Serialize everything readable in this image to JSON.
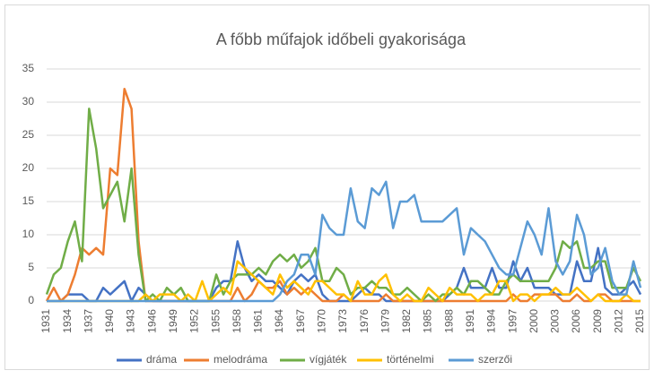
{
  "chart_data": {
    "type": "line",
    "title": "A főbb műfajok időbeli  gyakorisága",
    "categories": [
      "1931",
      null,
      null,
      "1934",
      null,
      null,
      "1937",
      null,
      null,
      "1940",
      null,
      null,
      "1943",
      null,
      null,
      "1946",
      null,
      null,
      "1949",
      null,
      null,
      "1952",
      null,
      null,
      "1955",
      null,
      null,
      "1958",
      null,
      null,
      "1961",
      null,
      null,
      "1964",
      null,
      null,
      "1967",
      null,
      null,
      "1970",
      null,
      null,
      "1973",
      null,
      null,
      "1976",
      null,
      null,
      "1979",
      null,
      null,
      "1982",
      null,
      null,
      "1985",
      null,
      null,
      "1988",
      null,
      null,
      "1991",
      null,
      null,
      "1994",
      null,
      null,
      "1997",
      null,
      null,
      "2000",
      null,
      null,
      "2003",
      null,
      null,
      "2006",
      null,
      null,
      "2009",
      null,
      null,
      "2012",
      null,
      null,
      "2015"
    ],
    "series": [
      {
        "name": "dráma",
        "color": "#4472c4",
        "values": [
          0,
          0,
          0,
          1,
          1,
          1,
          0,
          0,
          2,
          1,
          2,
          3,
          0,
          2,
          1,
          0,
          0,
          0,
          0,
          0,
          0,
          0,
          0,
          0,
          2,
          3,
          3,
          9,
          5,
          3,
          4,
          3,
          3,
          2,
          1,
          3,
          4,
          3,
          4,
          1,
          0,
          0,
          0,
          0,
          1,
          2,
          1,
          1,
          0,
          0,
          0,
          0,
          0,
          0,
          0,
          0,
          0,
          1,
          2,
          5,
          2,
          2,
          2,
          5,
          2,
          2,
          6,
          3,
          5,
          2,
          2,
          2,
          1,
          1,
          1,
          6,
          3,
          3,
          8,
          2,
          1,
          1,
          2,
          3,
          1
        ]
      },
      {
        "name": "melodráma",
        "color": "#ed7d31",
        "values": [
          0,
          2,
          0,
          1,
          4,
          8,
          7,
          8,
          7,
          20,
          19,
          32,
          29,
          9,
          0,
          0,
          0,
          0,
          0,
          0,
          0,
          0,
          0,
          0,
          0,
          0,
          0,
          2,
          0,
          1,
          3,
          2,
          2,
          3,
          1,
          2,
          1,
          2,
          1,
          0,
          0,
          0,
          1,
          0,
          0,
          0,
          0,
          0,
          1,
          0,
          0,
          0,
          0,
          0,
          0,
          0,
          0,
          0,
          0,
          0,
          0,
          0,
          0,
          0,
          0,
          0,
          1,
          0,
          0,
          1,
          1,
          1,
          1,
          0,
          0,
          1,
          0,
          0,
          1,
          1,
          0,
          0,
          0,
          0,
          0
        ]
      },
      {
        "name": "vígjáték",
        "color": "#70ad47",
        "values": [
          1,
          4,
          5,
          9,
          12,
          6,
          29,
          23,
          14,
          16,
          18,
          12,
          20,
          7,
          0,
          1,
          0,
          2,
          1,
          2,
          0,
          0,
          0,
          0,
          4,
          1,
          3,
          4,
          4,
          4,
          5,
          4,
          6,
          7,
          6,
          7,
          5,
          6,
          8,
          3,
          3,
          5,
          4,
          1,
          2,
          2,
          3,
          2,
          2,
          1,
          1,
          2,
          1,
          0,
          1,
          0,
          1,
          1,
          2,
          1,
          3,
          3,
          2,
          1,
          1,
          3,
          4,
          3,
          3,
          3,
          3,
          3,
          5,
          9,
          8,
          9,
          5,
          5,
          6,
          6,
          2,
          2,
          2,
          5,
          3
        ]
      },
      {
        "name": "történelmi",
        "color": "#ffc000",
        "values": [
          0,
          0,
          0,
          0,
          0,
          0,
          0,
          0,
          0,
          0,
          0,
          0,
          0,
          0,
          1,
          0,
          1,
          1,
          1,
          0,
          1,
          0,
          3,
          0,
          1,
          2,
          1,
          6,
          5,
          4,
          3,
          2,
          1,
          4,
          2,
          3,
          2,
          1,
          3,
          3,
          2,
          1,
          1,
          0,
          3,
          1,
          1,
          3,
          4,
          1,
          0,
          1,
          0,
          0,
          2,
          1,
          0,
          2,
          1,
          1,
          1,
          0,
          1,
          1,
          3,
          3,
          0,
          1,
          1,
          0,
          1,
          1,
          2,
          1,
          1,
          2,
          1,
          0,
          1,
          0,
          0,
          0,
          1,
          0,
          0
        ]
      },
      {
        "name": "szerzői",
        "color": "#5b9bd5",
        "values": [
          0,
          0,
          0,
          0,
          0,
          0,
          0,
          0,
          0,
          0,
          0,
          0,
          0,
          0,
          0,
          0,
          0,
          0,
          0,
          0,
          0,
          0,
          0,
          0,
          0,
          0,
          0,
          0,
          0,
          0,
          0,
          0,
          0,
          1,
          3,
          4,
          7,
          7,
          4,
          13,
          11,
          10,
          10,
          17,
          12,
          11,
          17,
          16,
          18,
          11,
          15,
          15,
          16,
          12,
          12,
          12,
          12,
          13,
          14,
          7,
          11,
          10,
          9,
          7,
          5,
          4,
          4,
          8,
          12,
          10,
          7,
          14,
          6,
          4,
          6,
          13,
          10,
          4,
          5,
          8,
          3,
          1,
          1,
          6,
          2
        ]
      }
    ],
    "ylim": [
      0,
      35
    ],
    "yticks": [
      0,
      5,
      10,
      15,
      20,
      25,
      30,
      35
    ],
    "grid": true,
    "legend": "bottom"
  }
}
